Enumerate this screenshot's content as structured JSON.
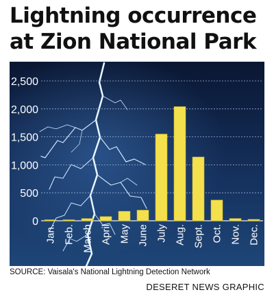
{
  "header": {
    "title_line1": "Lightning occurrence",
    "title_line2": "at Zion National Park"
  },
  "footer": {
    "source": "SOURCE: Vaisala's National Lightning Detection Network",
    "credit": "DESERET NEWS GRAPHIC"
  },
  "colors": {
    "bar": "#f4e04c",
    "bar_stroke": "#c9b52e",
    "background_top": "#0a1733",
    "background_bottom": "#1c4276",
    "lightning": "#cfe6ff"
  },
  "chart_data": {
    "type": "bar",
    "title": "Lightning occurrence at Zion National Park",
    "categories": [
      "Jan.",
      "Feb.",
      "March",
      "April",
      "May",
      "June",
      "July",
      "Aug.",
      "Sept.",
      "Oct.",
      "Nov.",
      "Dec."
    ],
    "values": [
      5,
      10,
      40,
      75,
      170,
      190,
      1550,
      2040,
      1140,
      370,
      40,
      25
    ],
    "ylim": [
      0,
      2500
    ],
    "yticks": [
      0,
      500,
      1000,
      1500,
      2000,
      2500
    ],
    "ytick_labels": [
      "0",
      "500",
      "1,000",
      "1,500",
      "2,000",
      "2,500"
    ],
    "grid": true,
    "xlabel": "",
    "ylabel": ""
  }
}
